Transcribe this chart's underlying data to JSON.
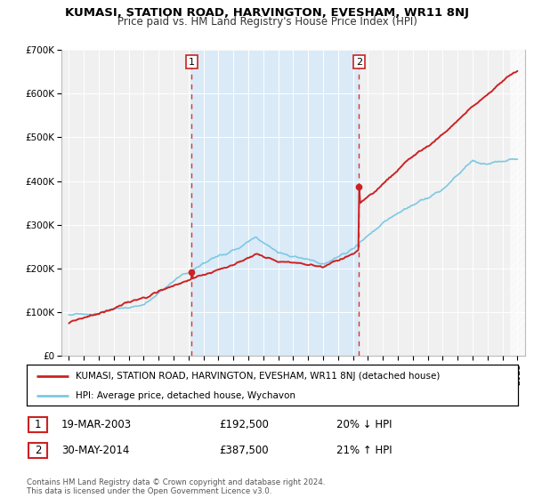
{
  "title": "KUMASI, STATION ROAD, HARVINGTON, EVESHAM, WR11 8NJ",
  "subtitle": "Price paid vs. HM Land Registry's House Price Index (HPI)",
  "ylim": [
    0,
    700000
  ],
  "yticks": [
    0,
    100000,
    200000,
    300000,
    400000,
    500000,
    600000,
    700000
  ],
  "ytick_labels": [
    "£0",
    "£100K",
    "£200K",
    "£300K",
    "£400K",
    "£500K",
    "£600K",
    "£700K"
  ],
  "xlim_start": 1994.5,
  "xlim_end": 2025.5,
  "xticks": [
    1995,
    1996,
    1997,
    1998,
    1999,
    2000,
    2001,
    2002,
    2003,
    2004,
    2005,
    2006,
    2007,
    2008,
    2009,
    2010,
    2011,
    2012,
    2013,
    2014,
    2015,
    2016,
    2017,
    2018,
    2019,
    2020,
    2021,
    2022,
    2023,
    2024,
    2025
  ],
  "hpi_color": "#7ec8e3",
  "price_color": "#cc2222",
  "marker_color": "#cc2222",
  "vline_color": "#dd3333",
  "shade_color": "#daeaf7",
  "transaction1": {
    "year": 2003.21,
    "price": 192500,
    "label": "1"
  },
  "transaction2": {
    "year": 2014.41,
    "price": 387500,
    "label": "2"
  },
  "legend_label1": "KUMASI, STATION ROAD, HARVINGTON, EVESHAM, WR11 8NJ (detached house)",
  "legend_label2": "HPI: Average price, detached house, Wychavon",
  "table_row1": [
    "1",
    "19-MAR-2003",
    "£192,500",
    "20% ↓ HPI"
  ],
  "table_row2": [
    "2",
    "30-MAY-2014",
    "£387,500",
    "21% ↑ HPI"
  ],
  "footnote": "Contains HM Land Registry data © Crown copyright and database right 2024.\nThis data is licensed under the Open Government Licence v3.0.",
  "background_color": "#ffffff",
  "plot_bg_color": "#f0f0f0",
  "hatch_color": "#cccccc"
}
